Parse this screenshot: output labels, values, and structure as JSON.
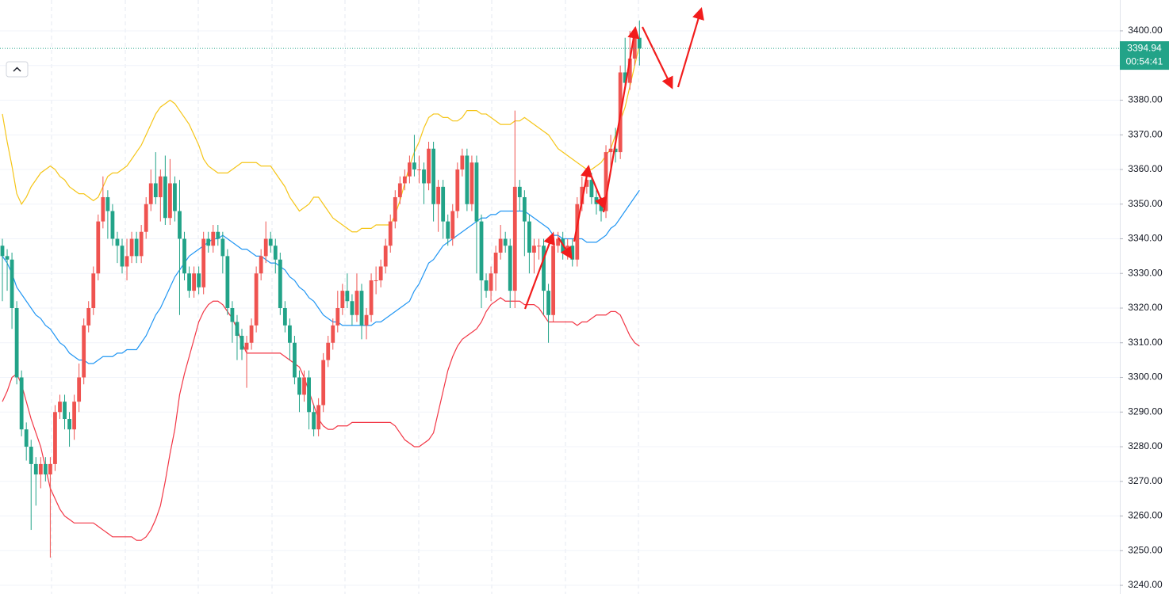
{
  "chart_data": {
    "type": "candlestick",
    "up_color": "#ef5350",
    "down_color": "#22a388",
    "ylim": [
      3237.5,
      3408.9
    ],
    "yticks": [
      {
        "value": 3240,
        "label": "3240.00"
      },
      {
        "value": 3250,
        "label": "3250.00"
      },
      {
        "value": 3260,
        "label": "3260.00"
      },
      {
        "value": 3270,
        "label": "3270.00"
      },
      {
        "value": 3280,
        "label": "3280.00"
      },
      {
        "value": 3290,
        "label": "3290.00"
      },
      {
        "value": 3300,
        "label": "3300.00"
      },
      {
        "value": 3310,
        "label": "3310.00"
      },
      {
        "value": 3320,
        "label": "3320.00"
      },
      {
        "value": 3330,
        "label": "3330.00"
      },
      {
        "value": 3340,
        "label": "3340.00"
      },
      {
        "value": 3350,
        "label": "3350.00"
      },
      {
        "value": 3360,
        "label": "3360.00"
      },
      {
        "value": 3370,
        "label": "3370.00"
      },
      {
        "value": 3380,
        "label": "3380.00"
      },
      {
        "value": 3390,
        "label": "3390.00"
      },
      {
        "value": 3400,
        "label": "3400.00"
      }
    ],
    "grid": true,
    "last_price_color": "#22a388",
    "countdown": "00:54:41",
    "open": [
      3338,
      3335,
      3334,
      3320,
      3300,
      3285,
      3280,
      3275,
      3272,
      3275,
      3272,
      3275,
      3290,
      3293,
      3288,
      3285,
      3293,
      3300,
      3315,
      3320,
      3330,
      3345,
      3352,
      3348,
      3340,
      3338,
      3332,
      3335,
      3340,
      3335,
      3342,
      3350,
      3356,
      3352,
      3358,
      3346,
      3356,
      3348,
      3340,
      3330,
      3325,
      3330,
      3326,
      3340,
      3338,
      3342,
      3340,
      3335,
      3320,
      3316,
      3312,
      3308,
      3310,
      3315,
      3330,
      3335,
      3340,
      3338,
      3334,
      3320,
      3315,
      3310,
      3300,
      3295,
      3300,
      3290,
      3285,
      3292,
      3305,
      3310,
      3315,
      3320,
      3325,
      3322,
      3318,
      3325,
      3315,
      3318,
      3328,
      3328,
      3332,
      3338,
      3345,
      3352,
      3356,
      3358,
      3362,
      3360,
      3360,
      3356,
      3366,
      3350,
      3355,
      3345,
      3340,
      3348,
      3360,
      3364,
      3350,
      3362,
      3345,
      3328,
      3325,
      3330,
      3336,
      3340,
      3338,
      3325,
      3355,
      3352,
      3345,
      3336,
      3338,
      3338,
      3325,
      3318,
      3338,
      3340,
      3336,
      3338,
      3334,
      3350,
      3355,
      3357,
      3352,
      3350,
      3348,
      3365,
      3366,
      3365,
      3388,
      3385,
      3392,
      3398
    ],
    "high": [
      3340,
      3337,
      3336,
      3322,
      3302,
      3287,
      3282,
      3277,
      3277,
      3277,
      3277,
      3292,
      3295,
      3295,
      3290,
      3295,
      3304,
      3317,
      3322,
      3332,
      3347,
      3358,
      3354,
      3350,
      3342,
      3340,
      3340,
      3342,
      3342,
      3344,
      3352,
      3360,
      3365,
      3360,
      3364,
      3363,
      3358,
      3357,
      3342,
      3332,
      3332,
      3332,
      3342,
      3342,
      3344,
      3344,
      3342,
      3337,
      3322,
      3318,
      3314,
      3312,
      3317,
      3332,
      3337,
      3345,
      3342,
      3340,
      3336,
      3322,
      3317,
      3312,
      3302,
      3302,
      3302,
      3292,
      3294,
      3307,
      3312,
      3317,
      3325,
      3327,
      3330,
      3324,
      3330,
      3327,
      3320,
      3330,
      3332,
      3334,
      3340,
      3347,
      3354,
      3358,
      3360,
      3364,
      3370,
      3364,
      3362,
      3368,
      3368,
      3357,
      3357,
      3347,
      3350,
      3362,
      3366,
      3366,
      3364,
      3364,
      3347,
      3330,
      3332,
      3338,
      3344,
      3342,
      3340,
      3377,
      3357,
      3354,
      3347,
      3340,
      3340,
      3340,
      3327,
      3342,
      3342,
      3342,
      3340,
      3340,
      3352,
      3358,
      3360,
      3359,
      3354,
      3352,
      3367,
      3370,
      3372,
      3390,
      3398,
      3400,
      3401,
      3403
    ],
    "low": [
      3322,
      3325,
      3314,
      3298,
      3283,
      3276,
      3256,
      3263,
      3268,
      3270,
      3248,
      3273,
      3288,
      3285,
      3280,
      3282,
      3290,
      3298,
      3313,
      3318,
      3328,
      3343,
      3340,
      3338,
      3333,
      3330,
      3328,
      3333,
      3333,
      3333,
      3340,
      3348,
      3350,
      3345,
      3344,
      3344,
      3345,
      3318,
      3328,
      3323,
      3323,
      3324,
      3324,
      3336,
      3336,
      3338,
      3330,
      3318,
      3310,
      3305,
      3305,
      3297,
      3308,
      3313,
      3328,
      3333,
      3336,
      3330,
      3318,
      3313,
      3305,
      3298,
      3290,
      3293,
      3285,
      3283,
      3283,
      3290,
      3303,
      3308,
      3313,
      3318,
      3320,
      3315,
      3316,
      3311,
      3311,
      3316,
      3324,
      3326,
      3330,
      3336,
      3343,
      3350,
      3354,
      3356,
      3358,
      3356,
      3350,
      3354,
      3345,
      3342,
      3340,
      3338,
      3338,
      3346,
      3358,
      3348,
      3348,
      3330,
      3320,
      3323,
      3322,
      3325,
      3334,
      3336,
      3320,
      3320,
      3348,
      3335,
      3330,
      3330,
      3334,
      3318,
      3310,
      3316,
      3336,
      3334,
      3334,
      3332,
      3332,
      3348,
      3353,
      3350,
      3347,
      3345,
      3346,
      3360,
      3362,
      3363,
      3383,
      3383,
      3390,
      3390
    ],
    "close": [
      3335,
      3334,
      3320,
      3300,
      3285,
      3280,
      3275,
      3272,
      3275,
      3272,
      3275,
      3290,
      3293,
      3288,
      3285,
      3293,
      3300,
      3315,
      3320,
      3330,
      3345,
      3352,
      3348,
      3340,
      3338,
      3332,
      3335,
      3340,
      3335,
      3342,
      3350,
      3356,
      3352,
      3358,
      3346,
      3356,
      3348,
      3340,
      3330,
      3325,
      3330,
      3326,
      3340,
      3338,
      3342,
      3340,
      3335,
      3320,
      3316,
      3312,
      3308,
      3310,
      3315,
      3330,
      3335,
      3340,
      3338,
      3334,
      3320,
      3315,
      3310,
      3300,
      3295,
      3300,
      3290,
      3285,
      3292,
      3305,
      3310,
      3315,
      3320,
      3325,
      3322,
      3318,
      3325,
      3315,
      3318,
      3328,
      3328,
      3332,
      3338,
      3345,
      3352,
      3356,
      3358,
      3362,
      3360,
      3360,
      3356,
      3366,
      3350,
      3355,
      3345,
      3340,
      3348,
      3360,
      3364,
      3350,
      3362,
      3345,
      3328,
      3325,
      3330,
      3336,
      3340,
      3338,
      3325,
      3355,
      3352,
      3345,
      3336,
      3338,
      3338,
      3325,
      3318,
      3338,
      3340,
      3336,
      3338,
      3334,
      3350,
      3355,
      3357,
      3352,
      3350,
      3348,
      3365,
      3366,
      3365,
      3388,
      3385,
      3392,
      3398,
      3394.94
    ],
    "series": [
      {
        "color": "#f5c518",
        "values": [
          3376,
          3368,
          3361,
          3353,
          3350,
          3352,
          3355,
          3357,
          3359,
          3360,
          3361,
          3360,
          3358,
          3357,
          3355,
          3354,
          3353,
          3353,
          3352,
          3351,
          3352,
          3355,
          3358,
          3359,
          3359,
          3360,
          3361,
          3363,
          3365,
          3367,
          3370,
          3373,
          3376,
          3378,
          3379,
          3380,
          3379,
          3377,
          3375,
          3373,
          3370,
          3367,
          3363,
          3361,
          3360,
          3359,
          3359,
          3359,
          3360,
          3361,
          3362,
          3362,
          3362,
          3362,
          3361,
          3361,
          3361,
          3359,
          3357,
          3355,
          3352,
          3350,
          3348,
          3349,
          3350,
          3352,
          3352,
          3350,
          3348,
          3346,
          3345,
          3344,
          3343,
          3342,
          3342,
          3343,
          3343,
          3343,
          3344,
          3344,
          3344,
          3344,
          3347,
          3351,
          3356,
          3361,
          3365,
          3368,
          3372,
          3375,
          3376,
          3376,
          3375,
          3375,
          3374,
          3374,
          3375,
          3377,
          3377,
          3377,
          3376,
          3376,
          3375,
          3374,
          3373,
          3373,
          3373,
          3374,
          3374,
          3375,
          3374,
          3373,
          3372,
          3371,
          3370,
          3368,
          3366,
          3365,
          3364,
          3363,
          3362,
          3361,
          3360,
          3360,
          3361,
          3362,
          3364,
          3366,
          3370,
          3374,
          3378,
          3384,
          3390,
          3396
        ]
      },
      {
        "color": "#2196f3",
        "values": [
          3335,
          3333,
          3330,
          3326,
          3324,
          3322,
          3320,
          3318,
          3317,
          3315,
          3314,
          3312,
          3310,
          3309,
          3307,
          3306,
          3305,
          3305,
          3304,
          3304,
          3305,
          3306,
          3306,
          3306,
          3307,
          3307,
          3308,
          3308,
          3308,
          3310,
          3312,
          3315,
          3318,
          3320,
          3323,
          3326,
          3329,
          3331,
          3333,
          3335,
          3336,
          3337,
          3338,
          3339,
          3340,
          3340,
          3341,
          3340,
          3339,
          3338,
          3337,
          3337,
          3336,
          3335,
          3335,
          3334,
          3333,
          3333,
          3332,
          3331,
          3329,
          3328,
          3326,
          3325,
          3323,
          3322,
          3320,
          3318,
          3317,
          3316,
          3316,
          3315,
          3315,
          3315,
          3315,
          3315,
          3315,
          3315,
          3316,
          3316,
          3317,
          3318,
          3319,
          3320,
          3321,
          3322,
          3325,
          3327,
          3330,
          3333,
          3334,
          3336,
          3338,
          3339,
          3340,
          3341,
          3342,
          3343,
          3344,
          3345,
          3346,
          3346,
          3347,
          3347,
          3348,
          3348,
          3348,
          3348,
          3348,
          3348,
          3347,
          3346,
          3345,
          3344,
          3343,
          3341,
          3341,
          3340,
          3340,
          3340,
          3340,
          3340,
          3339,
          3339,
          3339,
          3340,
          3341,
          3343,
          3344,
          3346,
          3348,
          3350,
          3352,
          3354
        ]
      },
      {
        "color": "#f23645",
        "values": [
          3293,
          3296,
          3300,
          3301,
          3298,
          3293,
          3288,
          3284,
          3280,
          3274,
          3268,
          3265,
          3262,
          3260,
          3259,
          3258,
          3258,
          3258,
          3258,
          3258,
          3257,
          3256,
          3255,
          3254,
          3254,
          3254,
          3254,
          3254,
          3253,
          3253,
          3254,
          3256,
          3259,
          3263,
          3270,
          3278,
          3285,
          3295,
          3301,
          3306,
          3311,
          3316,
          3319,
          3321,
          3322,
          3322,
          3321,
          3319,
          3317,
          3314,
          3310,
          3307,
          3307,
          3307,
          3307,
          3307,
          3307,
          3307,
          3307,
          3306,
          3305,
          3304,
          3303,
          3300,
          3296,
          3292,
          3288,
          3286,
          3285,
          3285,
          3286,
          3286,
          3286,
          3287,
          3287,
          3287,
          3287,
          3287,
          3287,
          3287,
          3287,
          3287,
          3286,
          3284,
          3282,
          3281,
          3280,
          3280,
          3281,
          3282,
          3284,
          3290,
          3296,
          3302,
          3306,
          3309,
          3311,
          3312,
          3313,
          3314,
          3316,
          3319,
          3321,
          3322,
          3323,
          3322,
          3322,
          3322,
          3322,
          3321,
          3321,
          3321,
          3320,
          3318,
          3316,
          3316,
          3316,
          3316,
          3316,
          3316,
          3315,
          3316,
          3316,
          3317,
          3318,
          3318,
          3318,
          3319,
          3319,
          3318,
          3315,
          3312,
          3310,
          3309
        ]
      }
    ]
  }
}
